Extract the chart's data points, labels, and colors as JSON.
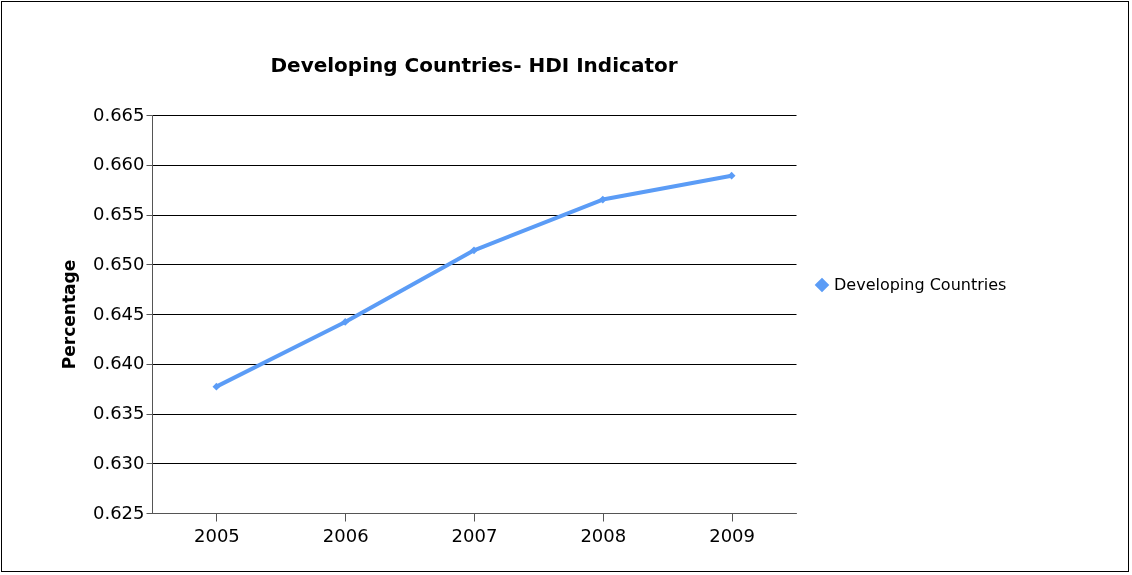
{
  "chart_data": {
    "type": "line",
    "title": "Developing Countries- HDI Indicator",
    "ylabel": "Percentage",
    "categories": [
      "2005",
      "2006",
      "2007",
      "2008",
      "2009"
    ],
    "series": [
      {
        "name": "Developing Countries",
        "color": "#5b9cf6",
        "values": [
          0.6377,
          0.6442,
          0.6514,
          0.6565,
          0.6589
        ]
      }
    ],
    "ylim": [
      0.625,
      0.665
    ],
    "yticks": [
      0.625,
      {
        "value": 0.63,
        "label": "0.630"
      },
      0.635,
      {
        "value": 0.64,
        "label": "0.640"
      },
      0.645,
      {
        "value": 0.65,
        "label": "0.650"
      },
      0.655,
      {
        "value": 0.66,
        "label": "0.660"
      },
      0.665
    ],
    "grid": "y",
    "legend": "right",
    "marker": "diamond",
    "line_style": "solid"
  }
}
